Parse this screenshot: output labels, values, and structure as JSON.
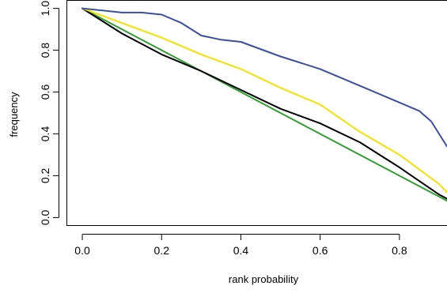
{
  "chart_data": {
    "type": "line",
    "title": "",
    "xlabel": "rank probability",
    "ylabel": "frequency",
    "xlim": [
      -0.04,
      0.92
    ],
    "ylim": [
      -0.04,
      1.04
    ],
    "x_ticks": [
      0.0,
      0.2,
      0.4,
      0.6,
      0.8
    ],
    "x_tick_labels": [
      "0.0",
      "0.2",
      "0.4",
      "0.6",
      "0.8"
    ],
    "y_ticks": [
      0.0,
      0.2,
      0.4,
      0.6,
      0.8,
      1.0
    ],
    "y_tick_labels": [
      "0.0",
      "0.2",
      "0.4",
      "0.6",
      "0.8",
      "1.0"
    ],
    "grid": false,
    "legend": "none",
    "series": [
      {
        "color": "#2f9f2f",
        "x": [
          0.0,
          0.92
        ],
        "y": [
          1.0,
          0.08
        ]
      },
      {
        "color": "#000000",
        "x": [
          0.0,
          0.1,
          0.2,
          0.3,
          0.4,
          0.5,
          0.6,
          0.7,
          0.8,
          0.9,
          0.92
        ],
        "y": [
          1.0,
          0.88,
          0.78,
          0.7,
          0.61,
          0.52,
          0.45,
          0.36,
          0.24,
          0.11,
          0.09
        ]
      },
      {
        "color": "#f5e100",
        "x": [
          0.0,
          0.1,
          0.2,
          0.3,
          0.4,
          0.5,
          0.6,
          0.7,
          0.8,
          0.9,
          0.92
        ],
        "y": [
          1.0,
          0.93,
          0.86,
          0.78,
          0.71,
          0.62,
          0.54,
          0.41,
          0.3,
          0.16,
          0.12
        ]
      },
      {
        "color": "#3a4fa0",
        "x": [
          0.0,
          0.1,
          0.15,
          0.2,
          0.25,
          0.3,
          0.35,
          0.4,
          0.5,
          0.6,
          0.7,
          0.8,
          0.85,
          0.88,
          0.9,
          0.92
        ],
        "y": [
          1.0,
          0.98,
          0.98,
          0.97,
          0.93,
          0.87,
          0.85,
          0.84,
          0.77,
          0.71,
          0.63,
          0.55,
          0.51,
          0.46,
          0.4,
          0.34
        ]
      }
    ]
  }
}
